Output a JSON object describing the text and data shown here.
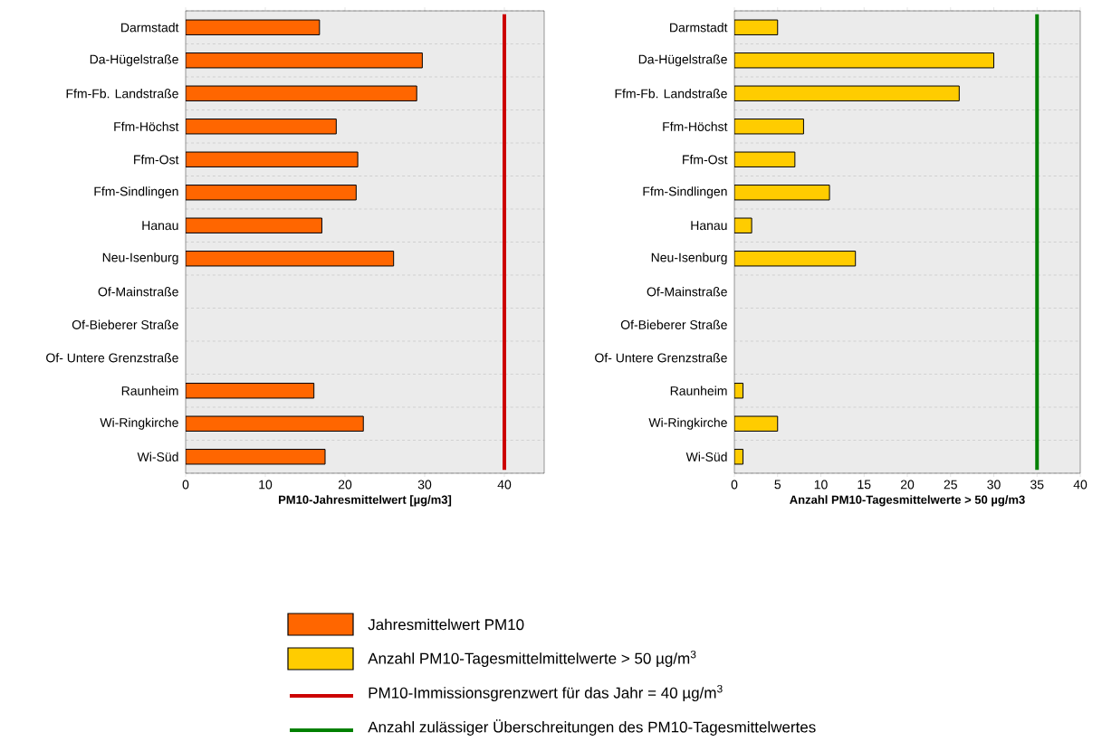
{
  "chart_data": [
    {
      "type": "bar",
      "orientation": "horizontal",
      "xlabel": "PM10-Jahresmittelwert [µg/m3]",
      "categories": [
        "Darmstadt",
        "Da-Hügelstraße",
        "Ffm-Fb. Landstraße",
        "Ffm-Höchst",
        "Ffm-Ost",
        "Ffm-Sindlingen",
        "Hanau",
        "Neu-Isenburg",
        "Of-Mainstraße",
        "Of-Bieberer Straße",
        "Of- Untere Grenzstraße",
        "Raunheim",
        "Wi-Ringkirche",
        "Wi-Süd"
      ],
      "series": [
        {
          "name": "Jahresmittelwert PM10",
          "color": "#ff6600",
          "values": [
            16.8,
            29.7,
            29.0,
            18.9,
            21.6,
            21.4,
            17.1,
            26.1,
            null,
            null,
            null,
            16.1,
            22.3,
            17.5
          ]
        }
      ],
      "xlim": [
        0,
        45
      ],
      "xticks": [
        0,
        10,
        20,
        30,
        40
      ],
      "ref_lines": [
        {
          "axis": "x",
          "value": 40,
          "label": "PM10-Immissionsgrenzwert für das Jahr = 40 µg/m$^{3}$",
          "color": "#cc0000"
        }
      ],
      "grid": "y",
      "legend": "bottom"
    },
    {
      "type": "bar",
      "orientation": "horizontal",
      "xlabel": "Anzahl PM10-Tagesmittelwerte > 50 µg/m3",
      "categories": [
        "Darmstadt",
        "Da-Hügelstraße",
        "Ffm-Fb. Landstraße",
        "Ffm-Höchst",
        "Ffm-Ost",
        "Ffm-Sindlingen",
        "Hanau",
        "Neu-Isenburg",
        "Of-Mainstraße",
        "Of-Bieberer Straße",
        "Of- Untere Grenzstraße",
        "Raunheim",
        "Wi-Ringkirche",
        "Wi-Süd"
      ],
      "series": [
        {
          "name": "Anzahl PM10-Tagesmittelmittelwerte > 50 µg/m$^{3}$",
          "color": "#ffcc00",
          "values": [
            5,
            30,
            26,
            8,
            7,
            11,
            2,
            14,
            null,
            null,
            null,
            1,
            5,
            1
          ]
        }
      ],
      "xlim": [
        0,
        40
      ],
      "xticks": [
        0,
        5,
        10,
        15,
        20,
        25,
        30,
        35,
        40
      ],
      "ref_lines": [
        {
          "axis": "x",
          "value": 35,
          "label": "Anzahl zulässiger Überschreitungen des PM10-Tagesmittelwertes",
          "color": "#008000"
        }
      ],
      "grid": "y",
      "legend": "bottom"
    }
  ]
}
